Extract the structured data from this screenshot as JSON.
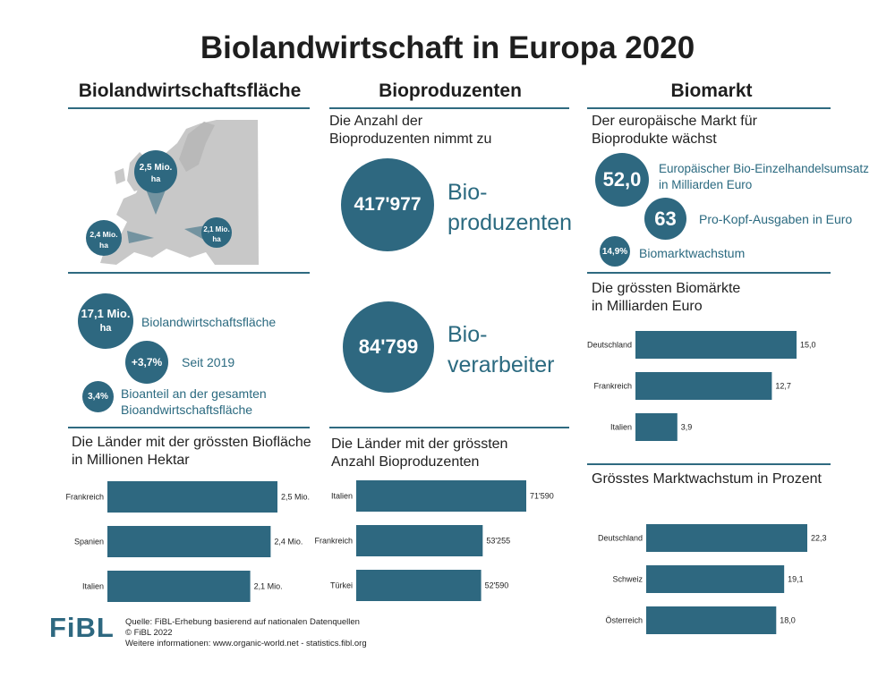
{
  "title": "Biolandwirtschaft in Europa 2020",
  "columns": {
    "left": "Biolandwirtschaftsfläche",
    "middle": "Bioproduzenten",
    "right": "Biomarkt"
  },
  "colors": {
    "accent": "#2e6880",
    "map": "#c8c8c8"
  },
  "map": {
    "bubbles": [
      {
        "value": "2,5 Mio.",
        "unit": "ha"
      },
      {
        "value": "2,4 Mio.",
        "unit": "ha"
      },
      {
        "value": "2,1 Mio.",
        "unit": "ha"
      }
    ]
  },
  "left_stats": [
    {
      "value": "17,1 Mio.",
      "unit": "ha",
      "label": "Biolandwirtschaftsfläche"
    },
    {
      "value": "+3,7%",
      "label": "Seit 2019"
    },
    {
      "value": "3,4%",
      "label": "Bioanteil an der gesamten",
      "label2": "Bioandwirtschaftsfläche"
    }
  ],
  "middle_intro": {
    "line1": "Die Anzahl der",
    "line2": "Bioproduzenten nimmt zu"
  },
  "producers": {
    "value": "417'977",
    "label1": "Bio-",
    "label2": "produzenten"
  },
  "processors": {
    "value": "84'799",
    "label1": "Bio-",
    "label2": "verarbeiter"
  },
  "right_intro": {
    "line1": "Der europäische Markt für",
    "line2": "Bioprodukte wächst"
  },
  "market_stats": [
    {
      "value": "52,0",
      "label": "Europäischer Bio-Einzelhandelsumsatz",
      "label2": "in Milliarden Euro"
    },
    {
      "value": "63",
      "label": "Pro-Kopf-Ausgaben in Euro"
    },
    {
      "value": "14,9%",
      "label": "Biomarktwachstum"
    }
  ],
  "chart_data": [
    {
      "type": "bar",
      "orientation": "horizontal",
      "title": "Die Länder mit der grössten Biofläche in Millionen Hektar",
      "title_line1": "Die Länder mit der grössten Biofläche",
      "title_line2": "in Millionen Hektar",
      "categories": [
        "Frankreich",
        "Spanien",
        "Italien"
      ],
      "values": [
        2.5,
        2.4,
        2.1
      ],
      "value_labels": [
        "2,5 Mio.",
        "2,4 Mio.",
        "2,1 Mio."
      ]
    },
    {
      "type": "bar",
      "orientation": "horizontal",
      "title": "Die Länder mit der grössten Anzahl Bioproduzenten",
      "title_line1": "Die Länder mit der grössten",
      "title_line2": "Anzahl Bioproduzenten",
      "categories": [
        "Italien",
        "Frankreich",
        "Türkei"
      ],
      "values": [
        71590,
        53255,
        52590
      ],
      "value_labels": [
        "71'590",
        "53'255",
        "52'590"
      ]
    },
    {
      "type": "bar",
      "orientation": "horizontal",
      "title": "Die grössten Biomärkte in Milliarden Euro",
      "title_line1": "Die grössten Biomärkte",
      "title_line2": "in Milliarden Euro",
      "categories": [
        "Deutschland",
        "Frankreich",
        "Italien"
      ],
      "values": [
        15.0,
        12.7,
        3.9
      ],
      "value_labels": [
        "15,0",
        "12,7",
        "3,9"
      ]
    },
    {
      "type": "bar",
      "orientation": "horizontal",
      "title": "Grösstes Marktwachstum in Prozent",
      "title_line1": "Grösstes Marktwachstum in Prozent",
      "title_line2": "",
      "categories": [
        "Deutschland",
        "Schweiz",
        "Österreich"
      ],
      "values": [
        22.3,
        19.1,
        18.0
      ],
      "value_labels": [
        "22,3",
        "19,1",
        "18,0"
      ]
    }
  ],
  "footer": {
    "logo": "FiBL",
    "source1": "Quelle: FiBL-Erhebung basierend auf nationalen Datenquellen",
    "source2": "© FiBL 2022",
    "source3": "Weitere informationen: www.organic-world.net - statistics.fibl.org"
  }
}
